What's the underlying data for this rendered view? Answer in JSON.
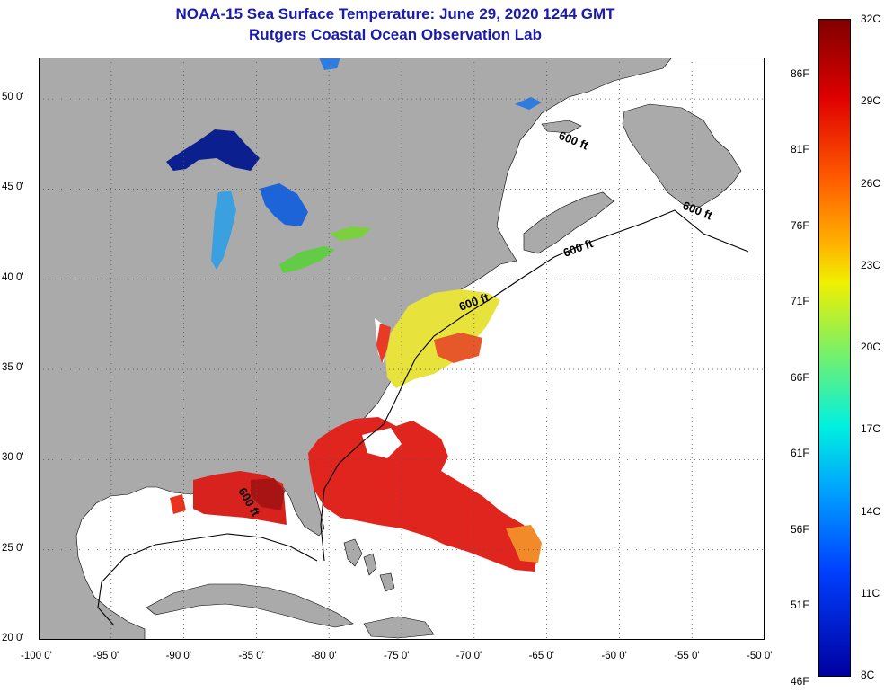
{
  "title": "NOAA-15 Sea Surface Temperature:  June 29, 2020 1244 GMT",
  "subtitle": "Rutgers Coastal Ocean Observation Lab",
  "map": {
    "lon_range": [
      -100,
      -50
    ],
    "lat_range": [
      20,
      52.3
    ],
    "lat_ticks": [
      {
        "value": 50,
        "label": "50 0'"
      },
      {
        "value": 45,
        "label": "45 0'"
      },
      {
        "value": 40,
        "label": "40 0'"
      },
      {
        "value": 35,
        "label": "35 0'"
      },
      {
        "value": 30,
        "label": "30 0'"
      },
      {
        "value": 25,
        "label": "25 0'"
      },
      {
        "value": 20,
        "label": "20 0'"
      }
    ],
    "lon_ticks": [
      {
        "value": -100,
        "label": "-100 0'"
      },
      {
        "value": -95,
        "label": "-95 0'"
      },
      {
        "value": -90,
        "label": "-90 0'"
      },
      {
        "value": -85,
        "label": "-85 0'"
      },
      {
        "value": -80,
        "label": "-80 0'"
      },
      {
        "value": -75,
        "label": "-75 0'"
      },
      {
        "value": -70,
        "label": "-70 0'"
      },
      {
        "value": -65,
        "label": "-65 0'"
      },
      {
        "value": -60,
        "label": "-60 0'"
      },
      {
        "value": -55,
        "label": "-55 0'"
      },
      {
        "value": -50,
        "label": "-50 0'"
      }
    ],
    "contour_labels": [
      "600 ft",
      "600 ft",
      "600 ft",
      "600 ft",
      "600 ft"
    ],
    "colors": {
      "land": "#aaaaaa",
      "ocean": "#ffffff",
      "grid": "#555555"
    }
  },
  "colorbar": {
    "min_c": 8,
    "max_c": 32,
    "c_labels": [
      {
        "value": 32,
        "label": "32C"
      },
      {
        "value": 29,
        "label": "29C"
      },
      {
        "value": 26,
        "label": "26C"
      },
      {
        "value": 23,
        "label": "23C"
      },
      {
        "value": 20,
        "label": "20C"
      },
      {
        "value": 17,
        "label": "17C"
      },
      {
        "value": 14,
        "label": "14C"
      },
      {
        "value": 11,
        "label": "11C"
      },
      {
        "value": 8,
        "label": "8C"
      }
    ],
    "f_labels": [
      {
        "value": 86,
        "label": "86F"
      },
      {
        "value": 81,
        "label": "81F"
      },
      {
        "value": 76,
        "label": "76F"
      },
      {
        "value": 71,
        "label": "71F"
      },
      {
        "value": 66,
        "label": "66F"
      },
      {
        "value": 61,
        "label": "61F"
      },
      {
        "value": 56,
        "label": "56F"
      },
      {
        "value": 51,
        "label": "51F"
      },
      {
        "value": 46,
        "label": "46F"
      }
    ]
  }
}
